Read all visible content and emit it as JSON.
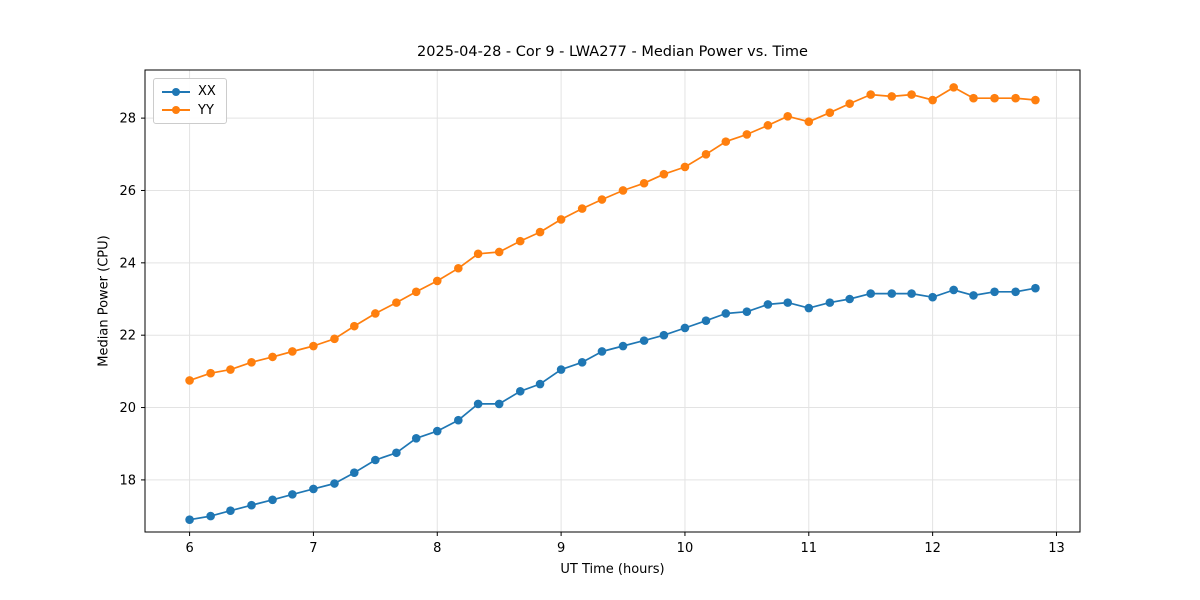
{
  "figure": {
    "title": "2025-04-28 - Cor 9 - LWA277 - Median Power vs. Time",
    "xlabel": "UT Time (hours)",
    "ylabel": "Median Power (CPU)"
  },
  "legend": {
    "items": [
      {
        "label": "XX",
        "color": "#1f77b4"
      },
      {
        "label": "YY",
        "color": "#ff7f0e"
      }
    ]
  },
  "chart_data": {
    "type": "line",
    "title": "2025-04-28 - Cor 9 - LWA277 - Median Power vs. Time",
    "xlabel": "UT Time (hours)",
    "ylabel": "Median Power (CPU)",
    "xlim": [
      5.64,
      13.19
    ],
    "ylim": [
      16.56,
      29.33
    ],
    "xticks": [
      6,
      7,
      8,
      9,
      10,
      11,
      12,
      13
    ],
    "yticks": [
      18,
      20,
      22,
      24,
      26,
      28
    ],
    "grid": true,
    "legend_position": "upper left",
    "x": [
      6.0,
      6.17,
      6.33,
      6.5,
      6.67,
      6.83,
      7.0,
      7.17,
      7.33,
      7.5,
      7.67,
      7.83,
      8.0,
      8.17,
      8.33,
      8.5,
      8.67,
      8.83,
      9.0,
      9.17,
      9.33,
      9.5,
      9.67,
      9.83,
      10.0,
      10.17,
      10.33,
      10.5,
      10.67,
      10.83,
      11.0,
      11.17,
      11.33,
      11.5,
      11.67,
      11.83,
      12.0,
      12.17,
      12.33,
      12.5,
      12.67,
      12.83
    ],
    "series": [
      {
        "name": "XX",
        "color": "#1f77b4",
        "values": [
          16.9,
          17.0,
          17.15,
          17.3,
          17.45,
          17.6,
          17.75,
          17.9,
          18.2,
          18.55,
          18.75,
          19.15,
          19.35,
          19.65,
          20.1,
          20.1,
          20.45,
          20.65,
          21.05,
          21.25,
          21.55,
          21.7,
          21.85,
          22.0,
          22.2,
          22.4,
          22.6,
          22.65,
          22.85,
          22.9,
          22.75,
          22.9,
          23.0,
          23.15,
          23.15,
          23.15,
          23.05,
          23.25,
          23.1,
          23.2,
          23.2,
          23.3
        ]
      },
      {
        "name": "YY",
        "color": "#ff7f0e",
        "values": [
          20.75,
          20.95,
          21.05,
          21.25,
          21.4,
          21.55,
          21.7,
          21.9,
          22.25,
          22.6,
          22.9,
          23.2,
          23.5,
          23.85,
          24.25,
          24.3,
          24.6,
          24.85,
          25.2,
          25.5,
          25.75,
          26.0,
          26.2,
          26.45,
          26.65,
          27.0,
          27.35,
          27.55,
          27.8,
          28.05,
          27.9,
          28.15,
          28.4,
          28.65,
          28.6,
          28.65,
          28.5,
          28.85,
          28.55,
          28.55,
          28.55,
          28.5
        ]
      }
    ]
  }
}
